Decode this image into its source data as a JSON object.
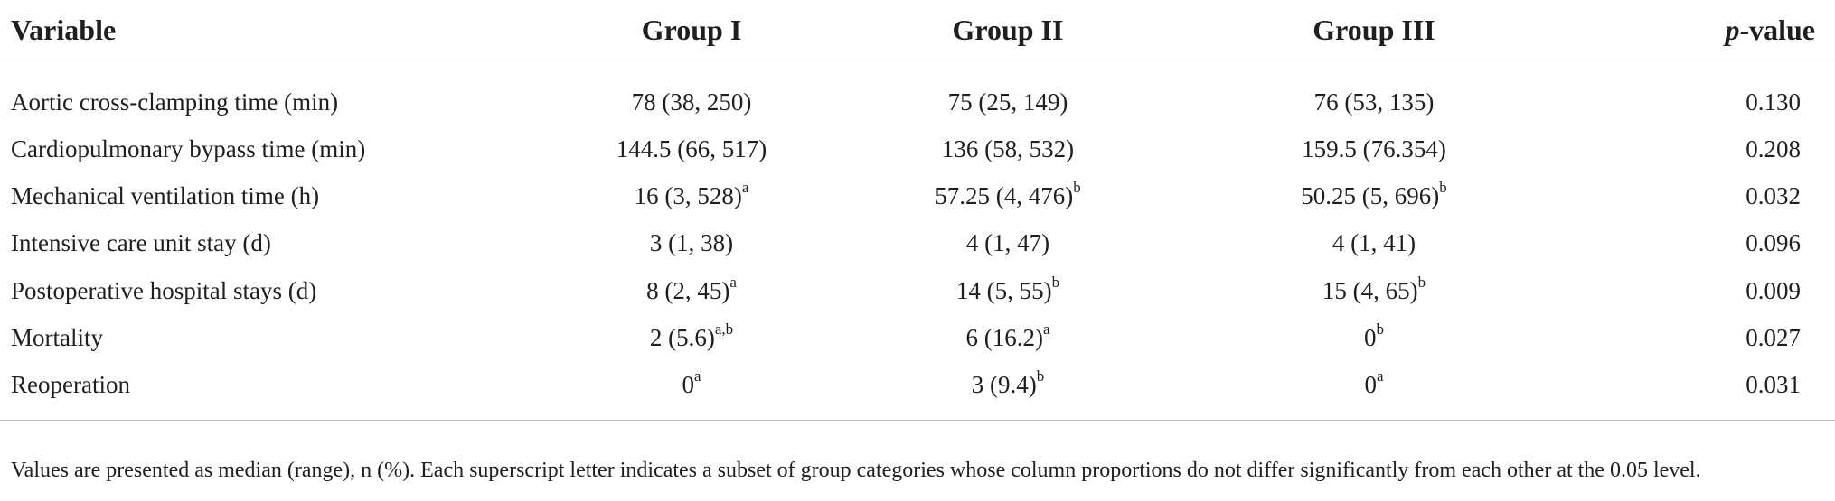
{
  "header": {
    "variable": "Variable",
    "group1": "Group I",
    "group2": "Group II",
    "group3": "Group III",
    "p_italic": "p",
    "p_rest": "-value"
  },
  "rows": [
    {
      "variable": "Aortic cross-clamping time (min)",
      "g1": "78 (38, 250)",
      "g1_sup": "",
      "g2": "75 (25, 149)",
      "g2_sup": "",
      "g3": "76 (53, 135)",
      "g3_sup": "",
      "p": "0.130"
    },
    {
      "variable": "Cardiopulmonary bypass time (min)",
      "g1": "144.5 (66, 517)",
      "g1_sup": "",
      "g2": "136 (58, 532)",
      "g2_sup": "",
      "g3": "159.5 (76.354)",
      "g3_sup": "",
      "p": "0.208"
    },
    {
      "variable": "Mechanical ventilation time (h)",
      "g1": "16 (3, 528)",
      "g1_sup": "a",
      "g2": "57.25 (4, 476)",
      "g2_sup": "b",
      "g3": "50.25 (5, 696)",
      "g3_sup": "b",
      "p": "0.032"
    },
    {
      "variable": "Intensive care unit stay (d)",
      "g1": "3 (1, 38)",
      "g1_sup": "",
      "g2": "4 (1, 47)",
      "g2_sup": "",
      "g3": "4 (1, 41)",
      "g3_sup": "",
      "p": "0.096"
    },
    {
      "variable": "Postoperative hospital stays (d)",
      "g1": "8 (2, 45)",
      "g1_sup": "a",
      "g2": "14 (5, 55)",
      "g2_sup": "b",
      "g3": "15 (4, 65)",
      "g3_sup": "b",
      "p": "0.009"
    },
    {
      "variable": "Mortality",
      "g1": "2 (5.6)",
      "g1_sup": "a,b",
      "g2": "6 (16.2)",
      "g2_sup": "a",
      "g3": "0",
      "g3_sup": "b",
      "p": "0.027"
    },
    {
      "variable": "Reoperation",
      "g1": "0",
      "g1_sup": "a",
      "g2": "3 (9.4)",
      "g2_sup": "b",
      "g3": "0",
      "g3_sup": "a",
      "p": "0.031"
    }
  ],
  "footnote": "Values are presented as median (range), n (%). Each superscript letter indicates a subset of group categories whose column proportions do not differ significantly from each other at the 0.05 level."
}
